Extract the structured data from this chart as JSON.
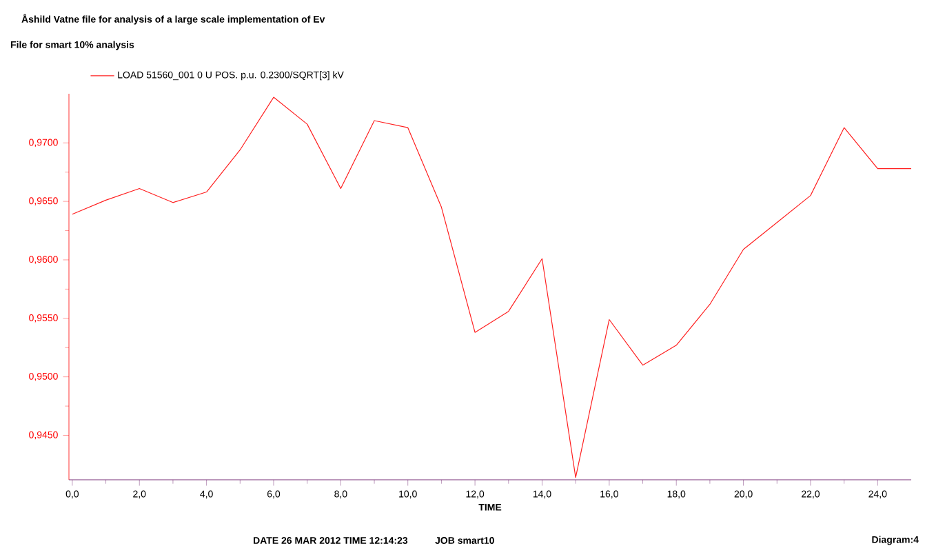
{
  "chart_data": {
    "type": "line",
    "title": "Åshild Vatne  file for analysis of a large scale implementation of Ev",
    "subtitle": "File for smart  10% analysis",
    "xlabel": "TIME",
    "x": [
      0,
      1,
      2,
      3,
      4,
      5,
      6,
      7,
      8,
      9,
      10,
      11,
      12,
      13,
      14,
      15,
      16,
      17,
      18,
      19,
      20,
      21,
      22,
      23,
      24,
      25
    ],
    "series": [
      {
        "name": "LOAD  51560_001     0 U POS.     p.u.  0.2300/SQRT[3] kV",
        "color": "#ff2020",
        "values": [
          0.9639,
          0.9651,
          0.9661,
          0.9649,
          0.9658,
          0.9694,
          0.9739,
          0.9716,
          0.9661,
          0.9719,
          0.9713,
          0.9645,
          0.9538,
          0.9556,
          0.9601,
          0.9414,
          0.9549,
          0.951,
          0.9527,
          0.9562,
          0.9609,
          0.9632,
          0.9655,
          0.9713,
          0.9678,
          0.9678
        ]
      }
    ],
    "xlim": [
      -0.1,
      25
    ],
    "ylim": [
      0.9412,
      0.9742
    ],
    "xticks": [
      {
        "value": 0,
        "label": "0,0"
      },
      {
        "value": 2,
        "label": "2,0"
      },
      {
        "value": 4,
        "label": "4,0"
      },
      {
        "value": 6,
        "label": "6,0"
      },
      {
        "value": 8,
        "label": "8,0"
      },
      {
        "value": 10,
        "label": "10,0"
      },
      {
        "value": 12,
        "label": "12,0"
      },
      {
        "value": 14,
        "label": "14,0"
      },
      {
        "value": 16,
        "label": "16,0"
      },
      {
        "value": 18,
        "label": "18,0"
      },
      {
        "value": 20,
        "label": "20,0"
      },
      {
        "value": 22,
        "label": "22,0"
      },
      {
        "value": 24,
        "label": "24,0"
      }
    ],
    "yticks": [
      {
        "value": 0.945,
        "label": "0,9450"
      },
      {
        "value": 0.95,
        "label": "0,9500"
      },
      {
        "value": 0.955,
        "label": "0,9550"
      },
      {
        "value": 0.96,
        "label": "0,9600"
      },
      {
        "value": 0.965,
        "label": "0,9650"
      },
      {
        "value": 0.97,
        "label": "0,9700"
      }
    ],
    "legend": "top left",
    "grid": false,
    "marker": "none",
    "line_style": "solid",
    "annotations": [
      "DATE 26 MAR 2012 TIME 12:14:23",
      "JOB smart10",
      "Diagram:4"
    ]
  }
}
